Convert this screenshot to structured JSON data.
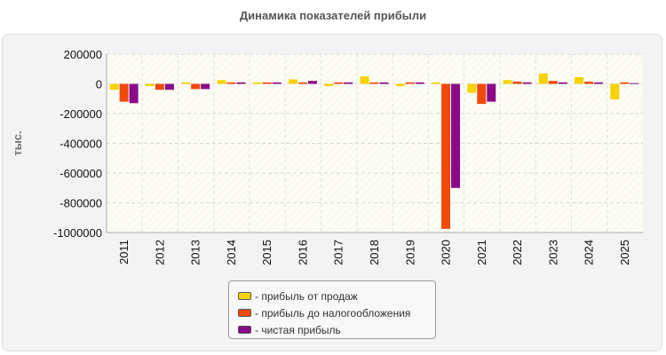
{
  "chart_data": {
    "type": "bar",
    "title": "Динамика показателей прибыли",
    "ylabel": "тыс.",
    "xlabel": "",
    "ylim": [
      -1000000,
      200000
    ],
    "yticks": [
      200000,
      0,
      -200000,
      -400000,
      -600000,
      -800000,
      -1000000
    ],
    "grid": true,
    "legend_position": "bottom",
    "categories": [
      "2011",
      "2012",
      "2013",
      "2014",
      "2015",
      "2016",
      "2017",
      "2018",
      "2019",
      "2020",
      "2021",
      "2022",
      "2023",
      "2024",
      "2025"
    ],
    "series": [
      {
        "name": "- прибыль от продаж",
        "color": "#f5d200",
        "values": [
          -40000,
          -15000,
          10000,
          25000,
          10000,
          30000,
          -15000,
          50000,
          -15000,
          10000,
          -60000,
          25000,
          70000,
          45000,
          -105000
        ]
      },
      {
        "name": "- прибыль до налогообложения",
        "color": "#f04a0a",
        "values": [
          -120000,
          -40000,
          -35000,
          10000,
          10000,
          10000,
          10000,
          10000,
          10000,
          -975000,
          -135000,
          15000,
          20000,
          15000,
          10000
        ]
      },
      {
        "name": "- чистая прибыль",
        "color": "#8a0a8a",
        "values": [
          -130000,
          -40000,
          -35000,
          10000,
          10000,
          20000,
          10000,
          10000,
          10000,
          -700000,
          -120000,
          10000,
          10000,
          10000,
          5000
        ]
      }
    ]
  }
}
